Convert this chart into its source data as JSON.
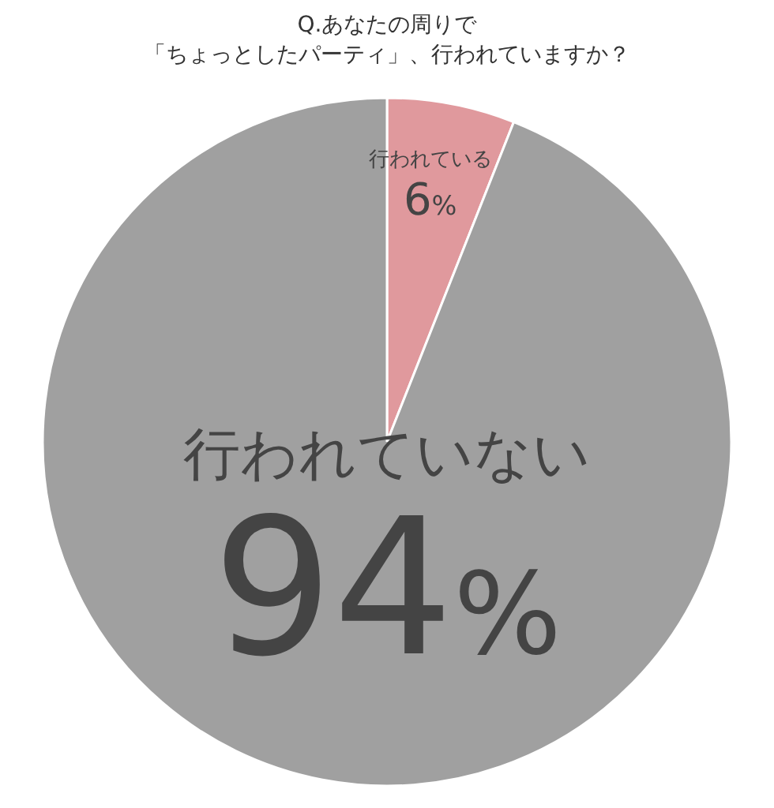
{
  "chart_data": {
    "type": "pie",
    "title": "Q.あなたの周りで",
    "subtitle": "「ちょっとしたパーティ」、行われていますか？",
    "categories": [
      "行われている",
      "行われていない"
    ],
    "values": [
      6,
      94
    ],
    "colors": [
      "#e0999d",
      "#a0a0a0"
    ],
    "value_labels": [
      "6%",
      "94%"
    ]
  }
}
